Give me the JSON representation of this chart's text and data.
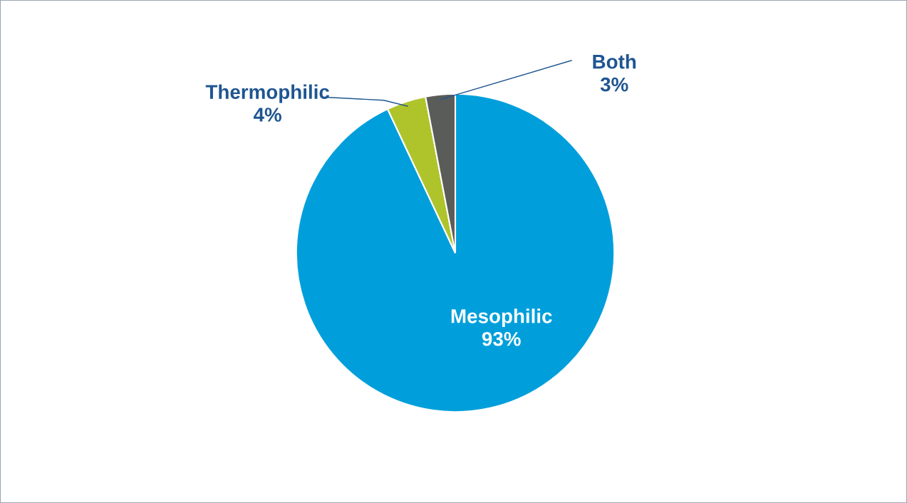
{
  "chart_data": {
    "type": "pie",
    "categories": [
      "Mesophilic",
      "Thermophilic",
      "Both"
    ],
    "values": [
      93,
      4,
      3
    ],
    "value_labels": [
      "93%",
      "4%",
      "3%"
    ],
    "colors": [
      "#009fdb",
      "#afc42b",
      "#5a5c5a"
    ],
    "legend": false
  }
}
